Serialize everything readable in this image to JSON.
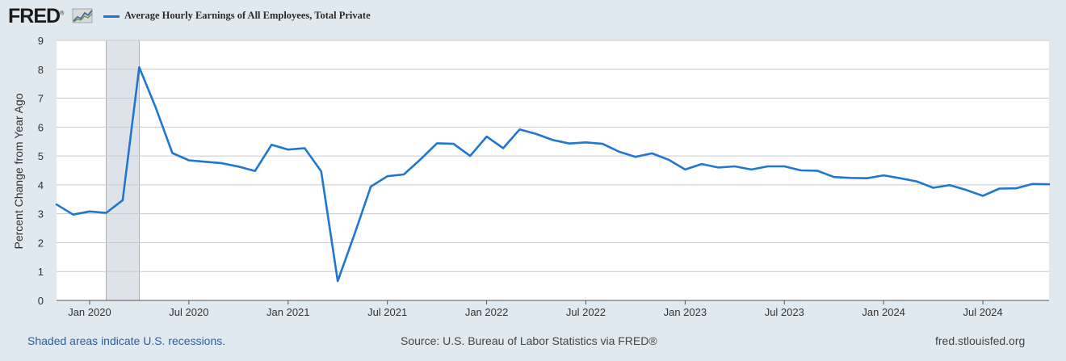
{
  "brand": {
    "logo_text": "FRED",
    "logo_mark": "®"
  },
  "colors": {
    "series": "#1f77d0",
    "recession": "#dde3e9",
    "background": "#e1e9f0",
    "plot_bg": "#ffffff",
    "grid": "#c9c9c9"
  },
  "footer": {
    "recession_note": "Shaded areas indicate U.S. recessions.",
    "source": "Source: U.S. Bureau of Labor Statistics via FRED®",
    "site": "fred.stlouisfed.org"
  },
  "chart_data": {
    "type": "line",
    "title": "",
    "ylabel": "Percent Change from Year Ago",
    "xlabel": "",
    "ylim": [
      0,
      9
    ],
    "xlim": [
      "2019-11",
      "2024-11"
    ],
    "grid": true,
    "legend_position": "top-left",
    "yticks": [
      0,
      1,
      2,
      3,
      4,
      5,
      6,
      7,
      8,
      9
    ],
    "xticks": [
      "Jan 2020",
      "Jul 2020",
      "Jan 2021",
      "Jul 2021",
      "Jan 2022",
      "Jul 2022",
      "Jan 2023",
      "Jul 2023",
      "Jan 2024",
      "Jul 2024"
    ],
    "xtick_dates": [
      "2020-01",
      "2020-07",
      "2021-01",
      "2021-07",
      "2022-01",
      "2022-07",
      "2023-01",
      "2023-07",
      "2024-01",
      "2024-07"
    ],
    "recessions": [
      {
        "start": "2020-02",
        "end": "2020-04"
      }
    ],
    "series": [
      {
        "name": "Average Hourly Earnings of All Employees, Total Private",
        "x": [
          "2019-11",
          "2019-12",
          "2020-01",
          "2020-02",
          "2020-03",
          "2020-04",
          "2020-05",
          "2020-06",
          "2020-07",
          "2020-08",
          "2020-09",
          "2020-10",
          "2020-11",
          "2020-12",
          "2021-01",
          "2021-02",
          "2021-03",
          "2021-04",
          "2021-05",
          "2021-06",
          "2021-07",
          "2021-08",
          "2021-09",
          "2021-10",
          "2021-11",
          "2021-12",
          "2022-01",
          "2022-02",
          "2022-03",
          "2022-04",
          "2022-05",
          "2022-06",
          "2022-07",
          "2022-08",
          "2022-09",
          "2022-10",
          "2022-11",
          "2022-12",
          "2023-01",
          "2023-02",
          "2023-03",
          "2023-04",
          "2023-05",
          "2023-06",
          "2023-07",
          "2023-08",
          "2023-09",
          "2023-10",
          "2023-11",
          "2023-12",
          "2024-01",
          "2024-02",
          "2024-03",
          "2024-04",
          "2024-05",
          "2024-06",
          "2024-07",
          "2024-08",
          "2024-09",
          "2024-10",
          "2024-11"
        ],
        "y": [
          3.32,
          2.97,
          3.08,
          3.03,
          3.47,
          8.07,
          6.67,
          5.1,
          4.85,
          4.8,
          4.75,
          4.63,
          4.48,
          5.39,
          5.22,
          5.27,
          4.47,
          0.67,
          2.27,
          3.94,
          4.3,
          4.36,
          4.88,
          5.44,
          5.42,
          5.0,
          5.67,
          5.27,
          5.92,
          5.76,
          5.55,
          5.43,
          5.47,
          5.42,
          5.15,
          4.97,
          5.09,
          4.87,
          4.53,
          4.72,
          4.6,
          4.64,
          4.53,
          4.64,
          4.64,
          4.5,
          4.49,
          4.27,
          4.24,
          4.23,
          4.33,
          4.23,
          4.12,
          3.9,
          3.99,
          3.82,
          3.62,
          3.87,
          3.88,
          4.03,
          4.02
        ]
      }
    ]
  }
}
